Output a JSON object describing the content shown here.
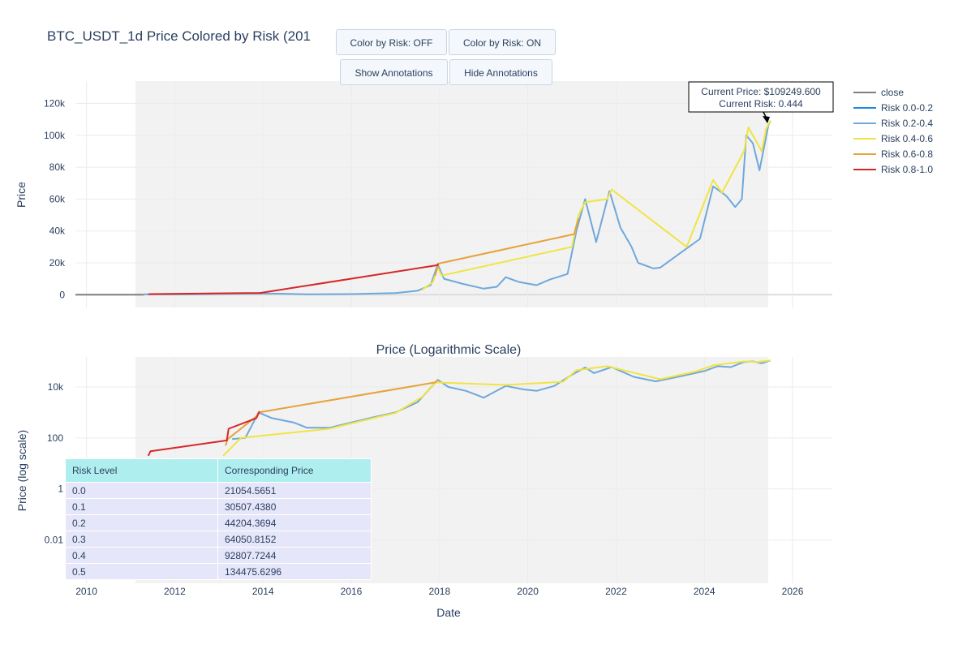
{
  "title": "BTC_USDT_1d Price Colored by Risk (201",
  "buttons": {
    "color_off": "Color by Risk: OFF",
    "color_on": "Color by Risk: ON",
    "show_annotations": "Show Annotations",
    "hide_annotations": "Hide Annotations"
  },
  "annotation": {
    "price_text": "Current Price: $109249.600",
    "risk_text": "Current Risk: 0.444"
  },
  "legend": [
    {
      "name": "close",
      "color": "#808080"
    },
    {
      "name": "Risk 0.0-0.2",
      "color": "#1e88e5"
    },
    {
      "name": "Risk 0.2-0.4",
      "color": "#6fa8dc"
    },
    {
      "name": "Risk 0.4-0.6",
      "color": "#f0e442"
    },
    {
      "name": "Risk 0.6-0.8",
      "color": "#e6a23c"
    },
    {
      "name": "Risk 0.8-1.0",
      "color": "#d62728"
    }
  ],
  "risk_table": {
    "headers": [
      "Risk Level",
      "Corresponding Price"
    ],
    "rows": [
      [
        "0.0",
        "21054.5651"
      ],
      [
        "0.1",
        "30507.4380"
      ],
      [
        "0.2",
        "44204.3694"
      ],
      [
        "0.3",
        "64050.8152"
      ],
      [
        "0.4",
        "92807.7244"
      ],
      [
        "0.5",
        "134475.6296"
      ]
    ]
  },
  "chart_data": [
    {
      "type": "line",
      "title": "",
      "xlabel": "",
      "ylabel": "Price",
      "ylim": [
        -8000,
        134000
      ],
      "xlim": [
        2009.75,
        2026.9
      ],
      "yticks": [
        0,
        20000,
        40000,
        60000,
        80000,
        100000,
        120000
      ],
      "ytick_labels": [
        "0",
        "20k",
        "40k",
        "60k",
        "80k",
        "100k",
        "120k"
      ],
      "grid": true,
      "legend_placement": "top-right",
      "series": [
        {
          "name": "close",
          "color": "#808080",
          "x": [
            2009.75,
            2011.3
          ],
          "y": [
            0,
            0
          ]
        },
        {
          "name": "Risk 0.2-0.4",
          "color": "#6fa8dc",
          "x": [
            2011.3,
            2012.0,
            2013.0,
            2013.9,
            2014.5,
            2015.0,
            2016.0,
            2017.0,
            2017.5,
            2017.8,
            2017.96,
            2018.1,
            2018.5,
            2019.0,
            2019.3,
            2019.5,
            2019.8,
            2020.2,
            2020.5,
            2020.9,
            2021.1,
            2021.3,
            2021.55,
            2021.85,
            2022.1,
            2022.35,
            2022.5,
            2022.85,
            2023.0,
            2023.5,
            2023.9,
            2024.2,
            2024.5,
            2024.7,
            2024.85,
            2024.95,
            2025.1,
            2025.25,
            2025.45,
            2025.5
          ],
          "y": [
            300,
            200,
            500,
            800,
            600,
            300,
            400,
            1000,
            2500,
            6000,
            19000,
            10000,
            7000,
            3800,
            5000,
            11000,
            8000,
            6000,
            9500,
            13000,
            40000,
            60000,
            33000,
            65000,
            42000,
            30000,
            20000,
            16500,
            17000,
            27000,
            35000,
            68000,
            62000,
            55000,
            60000,
            100000,
            95000,
            78000,
            106000,
            109250
          ]
        },
        {
          "name": "Risk 0.4-0.6",
          "color": "#f0e442",
          "x": [
            2017.6,
            2017.85,
            2017.96,
            2018.05,
            2021.0,
            2021.15,
            2021.3,
            2021.8,
            2021.9,
            2023.6,
            2024.2,
            2024.4,
            2024.9,
            2025.0,
            2025.3,
            2025.4,
            2025.5
          ],
          "y": [
            3000,
            8000,
            17000,
            12000,
            30000,
            50000,
            58000,
            60000,
            66000,
            30000,
            72000,
            64000,
            90000,
            105000,
            90000,
            104000,
            109250
          ]
        },
        {
          "name": "Risk 0.6-0.8",
          "color": "#e6a23c",
          "x": [
            2017.9,
            2017.97,
            2021.05,
            2021.15
          ],
          "y": [
            12000,
            19500,
            38000,
            48000
          ]
        },
        {
          "name": "Risk 0.8-1.0",
          "color": "#d62728",
          "x": [
            2011.4,
            2011.45,
            2013.9,
            2013.95,
            2017.95,
            2017.97
          ],
          "y": [
            300,
            400,
            1100,
            1150,
            18500,
            19500
          ]
        }
      ]
    },
    {
      "type": "line",
      "title": "Price (Logarithmic Scale)",
      "xlabel": "Date",
      "ylabel": "Price (log scale)",
      "log_y": true,
      "ylim": [
        0.0002,
        150000
      ],
      "xlim": [
        2009.75,
        2026.9
      ],
      "xticks": [
        2010,
        2012,
        2014,
        2016,
        2018,
        2020,
        2022,
        2024,
        2026
      ],
      "xtick_labels": [
        "2010",
        "2012",
        "2014",
        "2016",
        "2018",
        "2020",
        "2022",
        "2024",
        "2026"
      ],
      "yticks": [
        0.01,
        1,
        100,
        10000
      ],
      "ytick_labels": [
        "0.01",
        "1",
        "100",
        "10k"
      ],
      "grid": true,
      "series": [
        {
          "name": "Risk 0.2-0.4",
          "color": "#6fa8dc",
          "x": [
            2013.3,
            2013.6,
            2013.9,
            2014.2,
            2014.7,
            2015.0,
            2015.5,
            2016.0,
            2016.5,
            2017.0,
            2017.5,
            2017.96,
            2018.2,
            2018.6,
            2019.0,
            2019.5,
            2019.9,
            2020.2,
            2020.6,
            2021.0,
            2021.3,
            2021.5,
            2021.9,
            2022.4,
            2022.9,
            2023.5,
            2024.0,
            2024.3,
            2024.6,
            2024.9,
            2025.1,
            2025.3,
            2025.5
          ],
          "y": [
            90,
            100,
            1000,
            600,
            400,
            250,
            250,
            400,
            650,
            1000,
            2500,
            19000,
            10000,
            7000,
            3800,
            11000,
            8000,
            7000,
            11000,
            30000,
            58000,
            35000,
            60000,
            25000,
            16500,
            27000,
            42000,
            65000,
            60000,
            95000,
            100000,
            85000,
            109250
          ]
        },
        {
          "name": "Risk 0.4-0.6",
          "color": "#f0e442",
          "x": [
            2013.1,
            2013.5,
            2015.5,
            2016.5,
            2017.0,
            2017.6,
            2017.9,
            2019.5,
            2020.8,
            2021.1,
            2021.8,
            2023.0,
            2023.8,
            2024.2,
            2024.9,
            2025.2,
            2025.5
          ],
          "y": [
            20,
            100,
            230,
            600,
            950,
            4000,
            15000,
            12000,
            16000,
            45000,
            65000,
            20000,
            40000,
            70000,
            100000,
            95000,
            109250
          ]
        },
        {
          "name": "Risk 0.6-0.8",
          "color": "#e6a23c",
          "x": [
            2013.15,
            2013.2,
            2013.85,
            2013.9,
            2017.9,
            2017.97
          ],
          "y": [
            50,
            90,
            700,
            1000,
            15000,
            19000
          ]
        },
        {
          "name": "Risk 0.8-1.0",
          "color": "#d62728",
          "x": [
            2011.4,
            2011.45,
            2013.18,
            2013.22,
            2013.85,
            2013.92
          ],
          "y": [
            20,
            30,
            80,
            230,
            600,
            1100
          ]
        }
      ]
    }
  ]
}
